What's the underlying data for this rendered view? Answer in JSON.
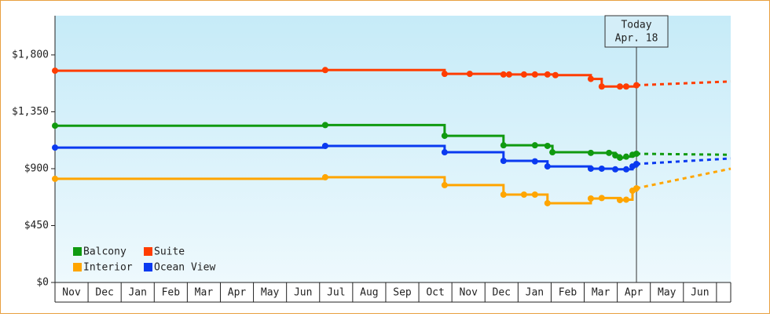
{
  "chart_data": {
    "type": "step-line",
    "categories": [
      "Nov",
      "Dec",
      "Jan",
      "Feb",
      "Mar",
      "Apr",
      "May",
      "Jun",
      "Jul",
      "Aug",
      "Sep",
      "Oct",
      "Nov",
      "Dec",
      "Jan",
      "Feb",
      "Mar",
      "Apr",
      "May",
      "Jun"
    ],
    "xlim": [
      0,
      20.43
    ],
    "ylim": [
      0,
      2110
    ],
    "yticks": [
      {
        "value": 0,
        "label": "$0"
      },
      {
        "value": 450,
        "label": "$450"
      },
      {
        "value": 900,
        "label": "$900"
      },
      {
        "value": 1350,
        "label": "$1,350"
      },
      {
        "value": 1800,
        "label": "$1,800"
      }
    ],
    "today": {
      "x": 17.58,
      "label": "Today",
      "date": "Apr. 18"
    },
    "forecast_x": 20.43,
    "series": [
      {
        "name": "Balcony",
        "color": "#109a10",
        "x": [
          0,
          8.17,
          11.78,
          13.56,
          14.51,
          14.89,
          15.04,
          16.2,
          16.75,
          16.94,
          17.08,
          17.27,
          17.46,
          17.58
        ],
        "values": [
          1240,
          1245,
          1160,
          1085,
          1085,
          1080,
          1030,
          1025,
          1025,
          1005,
          987,
          995,
          1010,
          1018
        ],
        "forecast": 1010
      },
      {
        "name": "Suite",
        "color": "#ff3d00",
        "x": [
          0,
          8.17,
          11.78,
          12.54,
          13.56,
          13.73,
          14.18,
          14.51,
          14.89,
          15.13,
          16.2,
          16.53,
          17.08,
          17.27,
          17.58
        ],
        "values": [
          1675,
          1680,
          1650,
          1650,
          1645,
          1645,
          1645,
          1645,
          1645,
          1640,
          1610,
          1550,
          1550,
          1550,
          1560
        ],
        "forecast": 1590
      },
      {
        "name": "Interior",
        "color": "#ffa500",
        "x": [
          0,
          8.17,
          11.78,
          13.56,
          14.18,
          14.51,
          14.89,
          16.2,
          16.53,
          17.08,
          17.27,
          17.46,
          17.58
        ],
        "values": [
          820,
          832,
          770,
          695,
          695,
          695,
          627,
          664,
          668,
          652,
          655,
          726,
          745
        ],
        "forecast": 900
      },
      {
        "name": "Ocean View",
        "color": "#0a3af0",
        "x": [
          0,
          8.17,
          11.78,
          13.56,
          14.51,
          14.89,
          16.2,
          16.53,
          16.94,
          17.27,
          17.46,
          17.58
        ],
        "values": [
          1067,
          1080,
          1030,
          962,
          958,
          918,
          900,
          900,
          895,
          895,
          918,
          937
        ],
        "forecast": 981
      }
    ]
  }
}
